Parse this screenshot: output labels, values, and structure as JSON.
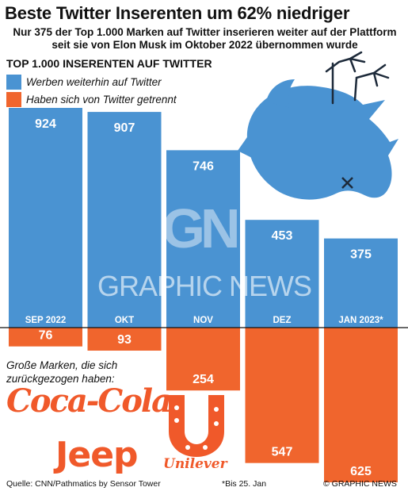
{
  "header": {
    "title": "Beste Twitter Inserenten um 62% niedriger",
    "subtitle_line1": "Nur 375 der Top 1.000 Marken auf Twitter inserieren weiter auf der Plattform",
    "subtitle_line2": "seit sie von Elon Musk im Oktober 2022 übernommen wurde"
  },
  "section_title": "TOP 1.000 INSERENTEN AUF TWITTER",
  "legend": [
    {
      "label": "Werben weiterhin auf Twitter",
      "color": "#4a93d2"
    },
    {
      "label": "Haben sich von Twitter getrennt",
      "color": "#f0652d"
    }
  ],
  "chart_data": {
    "type": "bar",
    "subtype": "diverging-stacked",
    "categories": [
      "SEP 2022",
      "OKT",
      "NOV",
      "DEZ",
      "JAN 2023*"
    ],
    "series": [
      {
        "name": "Werben weiterhin auf Twitter",
        "values": [
          924,
          907,
          746,
          453,
          375
        ],
        "color": "#4a93d2",
        "direction": "up"
      },
      {
        "name": "Haben sich von Twitter getrennt",
        "values": [
          76,
          93,
          254,
          547,
          625
        ],
        "color": "#f0652d",
        "direction": "down"
      }
    ],
    "ylim": [
      0,
      1000
    ],
    "grid": false,
    "legend_position": "top-left"
  },
  "decorations": {
    "icon": "upside-down-twitter-bird-icon",
    "bird_color": "#4a93d2",
    "watermark_logo": "GN",
    "watermark_text": "GRAPHIC NEWS"
  },
  "brands": {
    "heading_line1": "Große Marken, die sich",
    "heading_line2": "zurückgezogen haben:",
    "items": [
      "Coca-Cola",
      "Jeep",
      "Unilever"
    ],
    "color": "#f0592a"
  },
  "footer": {
    "source": "Quelle: CNN/Pathmatics by Sensor Tower",
    "note": "*Bis 25. Jan",
    "credit": "© GRAPHIC NEWS"
  }
}
